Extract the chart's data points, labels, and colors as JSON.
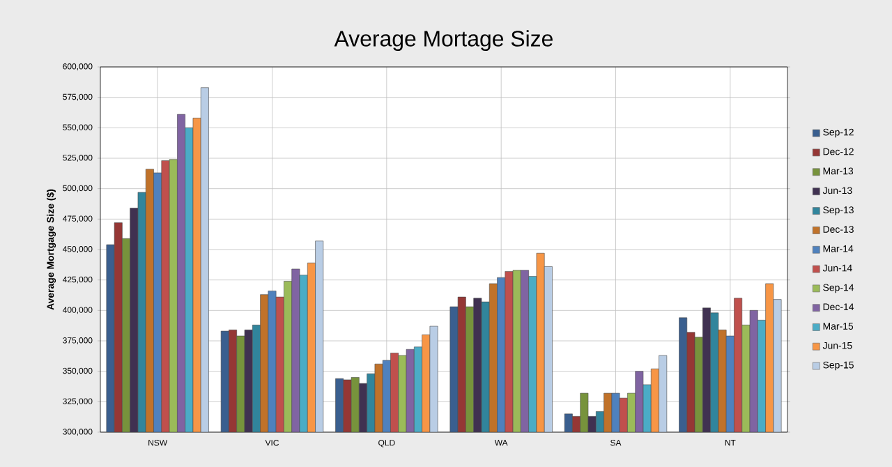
{
  "chart_data": {
    "type": "bar",
    "title": "Average Mortage Size",
    "ylabel": "Average Mortgage Size ($)",
    "categories": [
      "NSW",
      "VIC",
      "QLD",
      "WA",
      "SA",
      "NT"
    ],
    "ylim": [
      300000,
      600000
    ],
    "yticks": [
      {
        "value": 300000,
        "label": "300,000"
      },
      {
        "value": 325000,
        "label": "325,000"
      },
      {
        "value": 350000,
        "label": "350,000"
      },
      {
        "value": 375000,
        "label": "375,000"
      },
      {
        "value": 400000,
        "label": "400,000"
      },
      {
        "value": 425000,
        "label": "425,000"
      },
      {
        "value": 450000,
        "label": "450,000"
      },
      {
        "value": 475000,
        "label": "475,000"
      },
      {
        "value": 500000,
        "label": "500,000"
      },
      {
        "value": 525000,
        "label": "525,000"
      },
      {
        "value": 550000,
        "label": "550,000"
      },
      {
        "value": 575000,
        "label": "575,000"
      },
      {
        "value": 600000,
        "label": "600,000"
      }
    ],
    "grid": true,
    "legend": "right",
    "series": [
      {
        "name": "Sep-12",
        "color": "#3a5f8f",
        "values": [
          454000,
          383000,
          344000,
          403000,
          315000,
          394000
        ]
      },
      {
        "name": "Dec-12",
        "color": "#953735",
        "values": [
          472000,
          384000,
          343000,
          411000,
          313000,
          382000
        ]
      },
      {
        "name": "Mar-13",
        "color": "#77933c",
        "values": [
          459000,
          379000,
          345000,
          403000,
          332000,
          378000
        ]
      },
      {
        "name": "Jun-13",
        "color": "#403151",
        "values": [
          484000,
          384000,
          340000,
          410000,
          313000,
          402000
        ]
      },
      {
        "name": "Sep-13",
        "color": "#31859c",
        "values": [
          497000,
          388000,
          348000,
          407000,
          317000,
          398000
        ]
      },
      {
        "name": "Dec-13",
        "color": "#c0722a",
        "values": [
          516000,
          413000,
          356000,
          422000,
          332000,
          384000
        ]
      },
      {
        "name": "Mar-14",
        "color": "#4f81bd",
        "values": [
          513000,
          416000,
          359000,
          427000,
          332000,
          379000
        ]
      },
      {
        "name": "Jun-14",
        "color": "#c0504d",
        "values": [
          523000,
          411000,
          365000,
          432000,
          328000,
          410000
        ]
      },
      {
        "name": "Sep-14",
        "color": "#9bbb59",
        "values": [
          524000,
          424000,
          363000,
          433000,
          332000,
          388000
        ]
      },
      {
        "name": "Dec-14",
        "color": "#8064a2",
        "values": [
          561000,
          434000,
          368000,
          433000,
          350000,
          400000
        ]
      },
      {
        "name": "Mar-15",
        "color": "#4bacc6",
        "values": [
          550000,
          429000,
          370000,
          428000,
          339000,
          392000
        ]
      },
      {
        "name": "Jun-15",
        "color": "#f79646",
        "values": [
          558000,
          439000,
          380000,
          447000,
          352000,
          422000
        ]
      },
      {
        "name": "Sep-15",
        "color": "#b9cde5",
        "values": [
          583000,
          457000,
          387000,
          436000,
          363000,
          409000
        ]
      }
    ]
  }
}
